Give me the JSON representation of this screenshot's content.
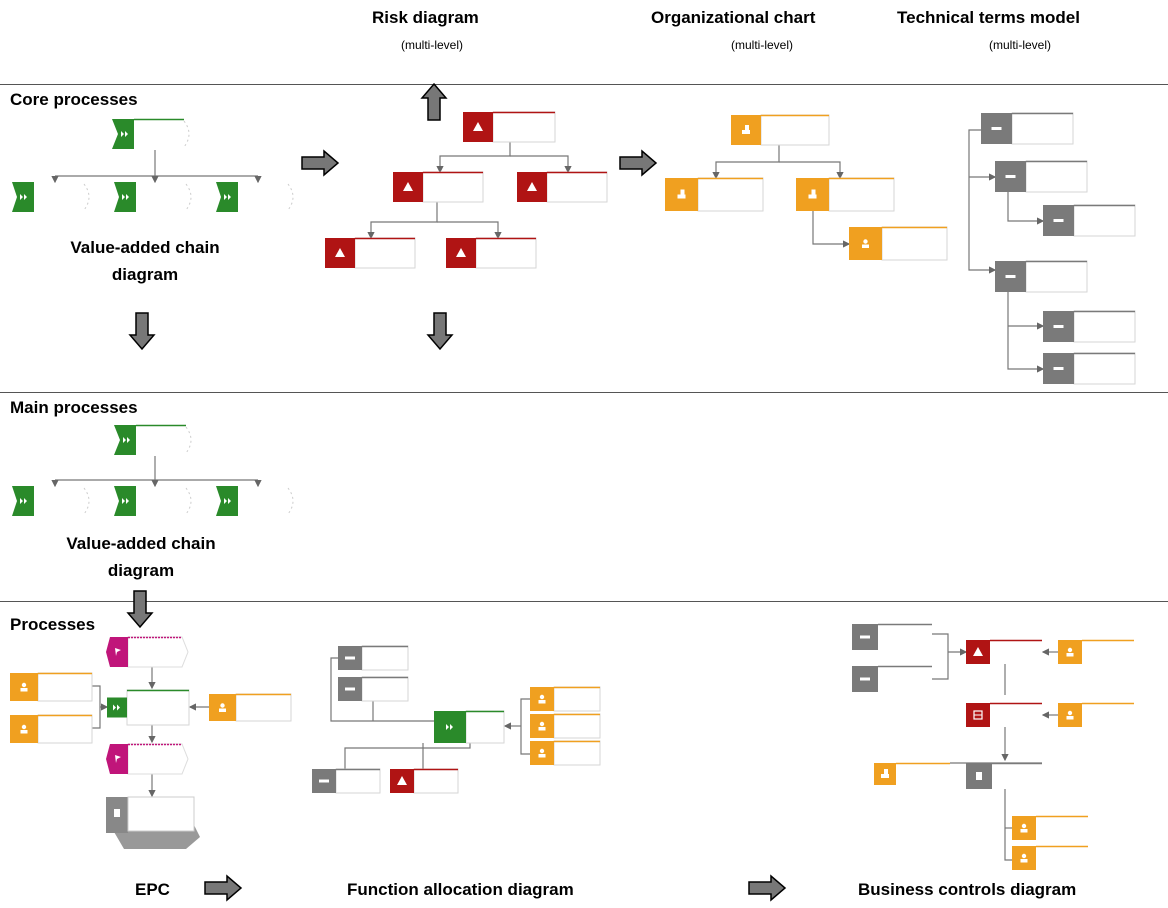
{
  "headers": {
    "risk": {
      "title": "Risk diagram",
      "sub": "(multi-level)"
    },
    "org": {
      "title": "Organizational chart",
      "sub": "(multi-level)"
    },
    "terms": {
      "title": "Technical terms model",
      "sub": "(multi-level)"
    }
  },
  "sections": {
    "core": "Core processes",
    "main": "Main processes",
    "processes": "Processes"
  },
  "captions": {
    "vac1_line1": "Value-added chain",
    "vac1_line2": "diagram",
    "vac2_line1": "Value-added chain",
    "vac2_line2": "diagram",
    "epc": "EPC",
    "fad": "Function allocation diagram",
    "bcd": "Business controls diagram"
  },
  "colors": {
    "function_green": "#2a8a2a",
    "risk_red": "#b01414",
    "org_orange": "#f0a020",
    "term_gray": "#7a7a7a",
    "event_magenta": "#c0157a",
    "arrow_gray": "#666666"
  }
}
